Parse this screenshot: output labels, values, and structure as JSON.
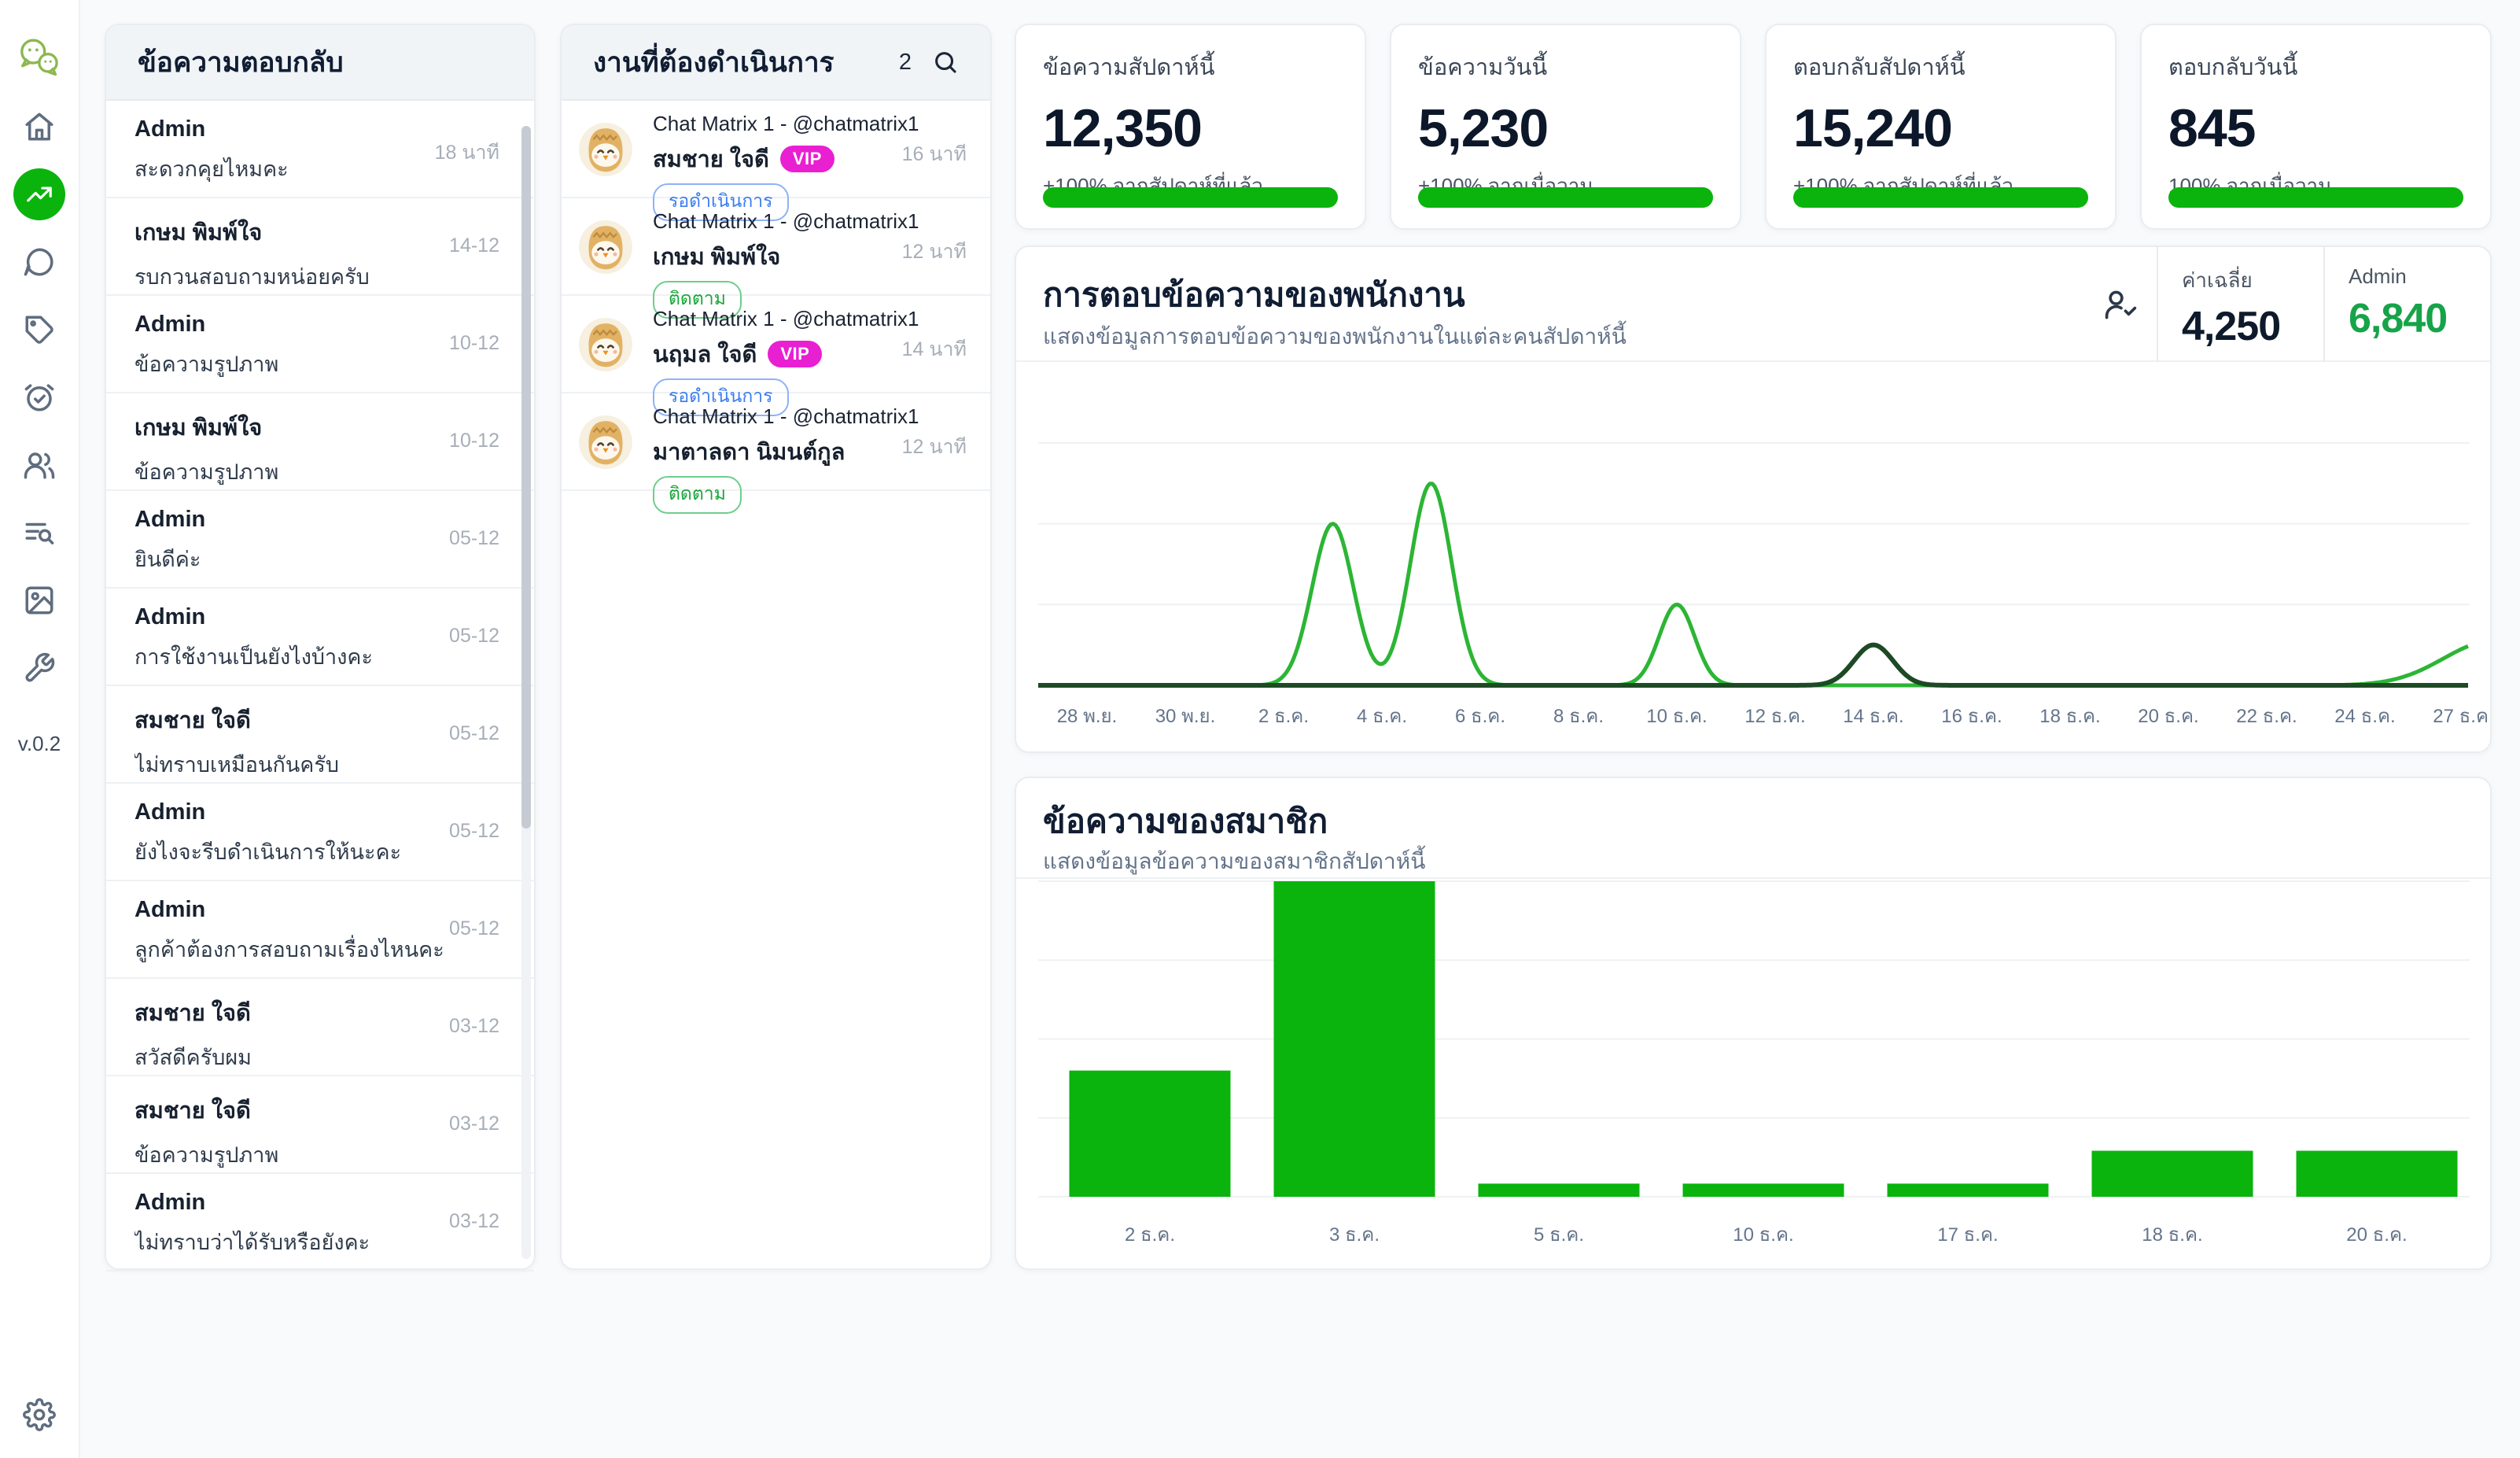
{
  "app": {
    "version": "v.0.2"
  },
  "colors": {
    "accent_green": "#0ab40d",
    "line_green": "#2cb534",
    "line_dark_green": "#1d4a25",
    "metric_green": "#17a349",
    "vip_magenta": "#e91fd2",
    "status_blue": "#3b7df0",
    "status_green": "#17a63a",
    "logo_green": "#8cb84f"
  },
  "sidebar": {
    "icons": [
      "home-icon",
      "trending-up-icon",
      "chat-bubble-icon",
      "tag-icon",
      "alarm-check-icon",
      "users-icon",
      "list-search-icon",
      "image-icon",
      "wrench-icon"
    ],
    "active_icon": "trending-up-icon",
    "version_label": "v.0.2",
    "settings_icon": "gear-icon"
  },
  "reply_panel": {
    "title": "ข้อความตอบกลับ",
    "items": [
      {
        "name": "Admin",
        "preview": "สะดวกคุยไหมคะ",
        "time": "18 นาที"
      },
      {
        "name": "เกษม พิมพ์ใจ",
        "preview": "รบกวนสอบถามหน่อยครับ",
        "time": "14-12"
      },
      {
        "name": "Admin",
        "preview": "ข้อความรูปภาพ",
        "time": "10-12"
      },
      {
        "name": "เกษม พิมพ์ใจ",
        "preview": "ข้อความรูปภาพ",
        "time": "10-12"
      },
      {
        "name": "Admin",
        "preview": "ยินดีค่ะ",
        "time": "05-12"
      },
      {
        "name": "Admin",
        "preview": "การใช้งานเป็นยังไงบ้างคะ",
        "time": "05-12"
      },
      {
        "name": "สมชาย ใจดี",
        "preview": "ไม่ทราบเหมือนกันครับ",
        "time": "05-12"
      },
      {
        "name": "Admin",
        "preview": "ยังไงจะรีบดำเนินการให้นะคะ",
        "time": "05-12"
      },
      {
        "name": "Admin",
        "preview": "ลูกค้าต้องการสอบถามเรื่องไหนคะ",
        "time": "05-12"
      },
      {
        "name": "สมชาย ใจดี",
        "preview": "สวัสดีครับผม",
        "time": "03-12"
      },
      {
        "name": "สมชาย ใจดี",
        "preview": "ข้อความรูปภาพ",
        "time": "03-12"
      },
      {
        "name": "Admin",
        "preview": "ไม่ทราบว่าได้รับหรือยังคะ",
        "time": "03-12"
      }
    ]
  },
  "task_panel": {
    "title": "งานที่ต้องดำเนินการ",
    "count": "2",
    "vip_label": "VIP",
    "items": [
      {
        "channel": "Chat Matrix 1 - @chatmatrix1",
        "name": "สมชาย ใจดี",
        "vip": true,
        "status": "รอดำเนินการ",
        "status_type": "pending",
        "time": "16 นาที"
      },
      {
        "channel": "Chat Matrix 1 - @chatmatrix1",
        "name": "เกษม พิมพ์ใจ",
        "vip": false,
        "status": "ติดตาม",
        "status_type": "follow",
        "time": "12 นาที"
      },
      {
        "channel": "Chat Matrix 1 - @chatmatrix1",
        "name": "นฤมล ใจดี",
        "vip": true,
        "status": "รอดำเนินการ",
        "status_type": "pending",
        "time": "14 นาที"
      },
      {
        "channel": "Chat Matrix 1 - @chatmatrix1",
        "name": "มาตาลดา นิมนต์กูล",
        "vip": false,
        "status": "ติดตาม",
        "status_type": "follow",
        "time": "12 นาที"
      }
    ]
  },
  "stat_cards": [
    {
      "title": "ข้อความสัปดาห์นี้",
      "value": "12,350",
      "delta": "+100% จากสัปดาห์ที่แล้ว",
      "progress_pct": 100
    },
    {
      "title": "ข้อความวันนี้",
      "value": "5,230",
      "delta": "+100% จากเมื่อวาน",
      "progress_pct": 100
    },
    {
      "title": "ตอบกลับสัปดาห์นี้",
      "value": "15,240",
      "delta": "+100% จากสัปดาห์ที่แล้ว",
      "progress_pct": 100
    },
    {
      "title": "ตอบกลับวันนี้",
      "value": "845",
      "delta": "100% จากเมื่อวาน",
      "progress_pct": 100
    }
  ],
  "line_panel": {
    "title": "การตอบข้อความของพนักงาน",
    "subtitle": "แสดงข้อมูลการตอบข้อความของพนักงานในแต่ละคนสัปดาห์นี้",
    "metrics": [
      {
        "label": "ค่าเฉลี่ย",
        "value": "4,250",
        "highlight": false
      },
      {
        "label": "Admin",
        "value": "6,840",
        "highlight": true
      }
    ]
  },
  "bar_panel": {
    "title": "ข้อความของสมาชิก",
    "subtitle": "แสดงข้อมูลข้อความของสมาชิกสัปดาห์นี้"
  },
  "chart_data": [
    {
      "type": "line",
      "title": "การตอบข้อความของพนักงาน",
      "x_ticks": [
        "28 พ.ย.",
        "30 พ.ย.",
        "2 ธ.ค.",
        "4 ธ.ค.",
        "6 ธ.ค.",
        "8 ธ.ค.",
        "10 ธ.ค.",
        "12 ธ.ค.",
        "14 ธ.ค.",
        "16 ธ.ค.",
        "18 ธ.ค.",
        "20 ธ.ค.",
        "22 ธ.ค.",
        "24 ธ.ค.",
        "27 ธ.ค."
      ],
      "ylim": [
        0,
        6000
      ],
      "gridline_values": [
        2000,
        4000,
        6000
      ],
      "grid": true,
      "legend_position": "top-right",
      "series": [
        {
          "name": "Admin",
          "color": "#2cb534",
          "baseline": 0,
          "peaks": [
            {
              "date": "3 ธ.ค.",
              "x_index": 2.5,
              "value": 4000,
              "sigma": 0.21
            },
            {
              "date": "5 ธ.ค.",
              "x_index": 3.5,
              "value": 5000,
              "sigma": 0.21
            },
            {
              "date": "10 ธ.ค.",
              "x_index": 6.0,
              "value": 2000,
              "sigma": 0.18
            },
            {
              "date": "27 ธ.ค.",
              "x_index": 14.3,
              "value": 1100,
              "sigma": 0.5
            }
          ]
        },
        {
          "name": "ค่าเฉลี่ย",
          "color": "#1d4a25",
          "baseline": 0,
          "peaks": [
            {
              "date": "14 ธ.ค.",
              "x_index": 8.0,
              "value": 1000,
              "sigma": 0.2
            }
          ]
        }
      ]
    },
    {
      "type": "bar",
      "title": "ข้อความของสมาชิก",
      "categories": [
        "2 ธ.ค.",
        "3 ธ.ค.",
        "5 ธ.ค.",
        "10 ธ.ค.",
        "17 ธ.ค.",
        "18 ธ.ค.",
        "20 ธ.ค."
      ],
      "values": [
        480,
        1200,
        50,
        50,
        50,
        175,
        175
      ],
      "ylim": [
        0,
        1200
      ],
      "gridline_values": [
        300,
        600,
        900,
        1200
      ],
      "grid": true,
      "bar_color": "#0ab40d"
    }
  ]
}
